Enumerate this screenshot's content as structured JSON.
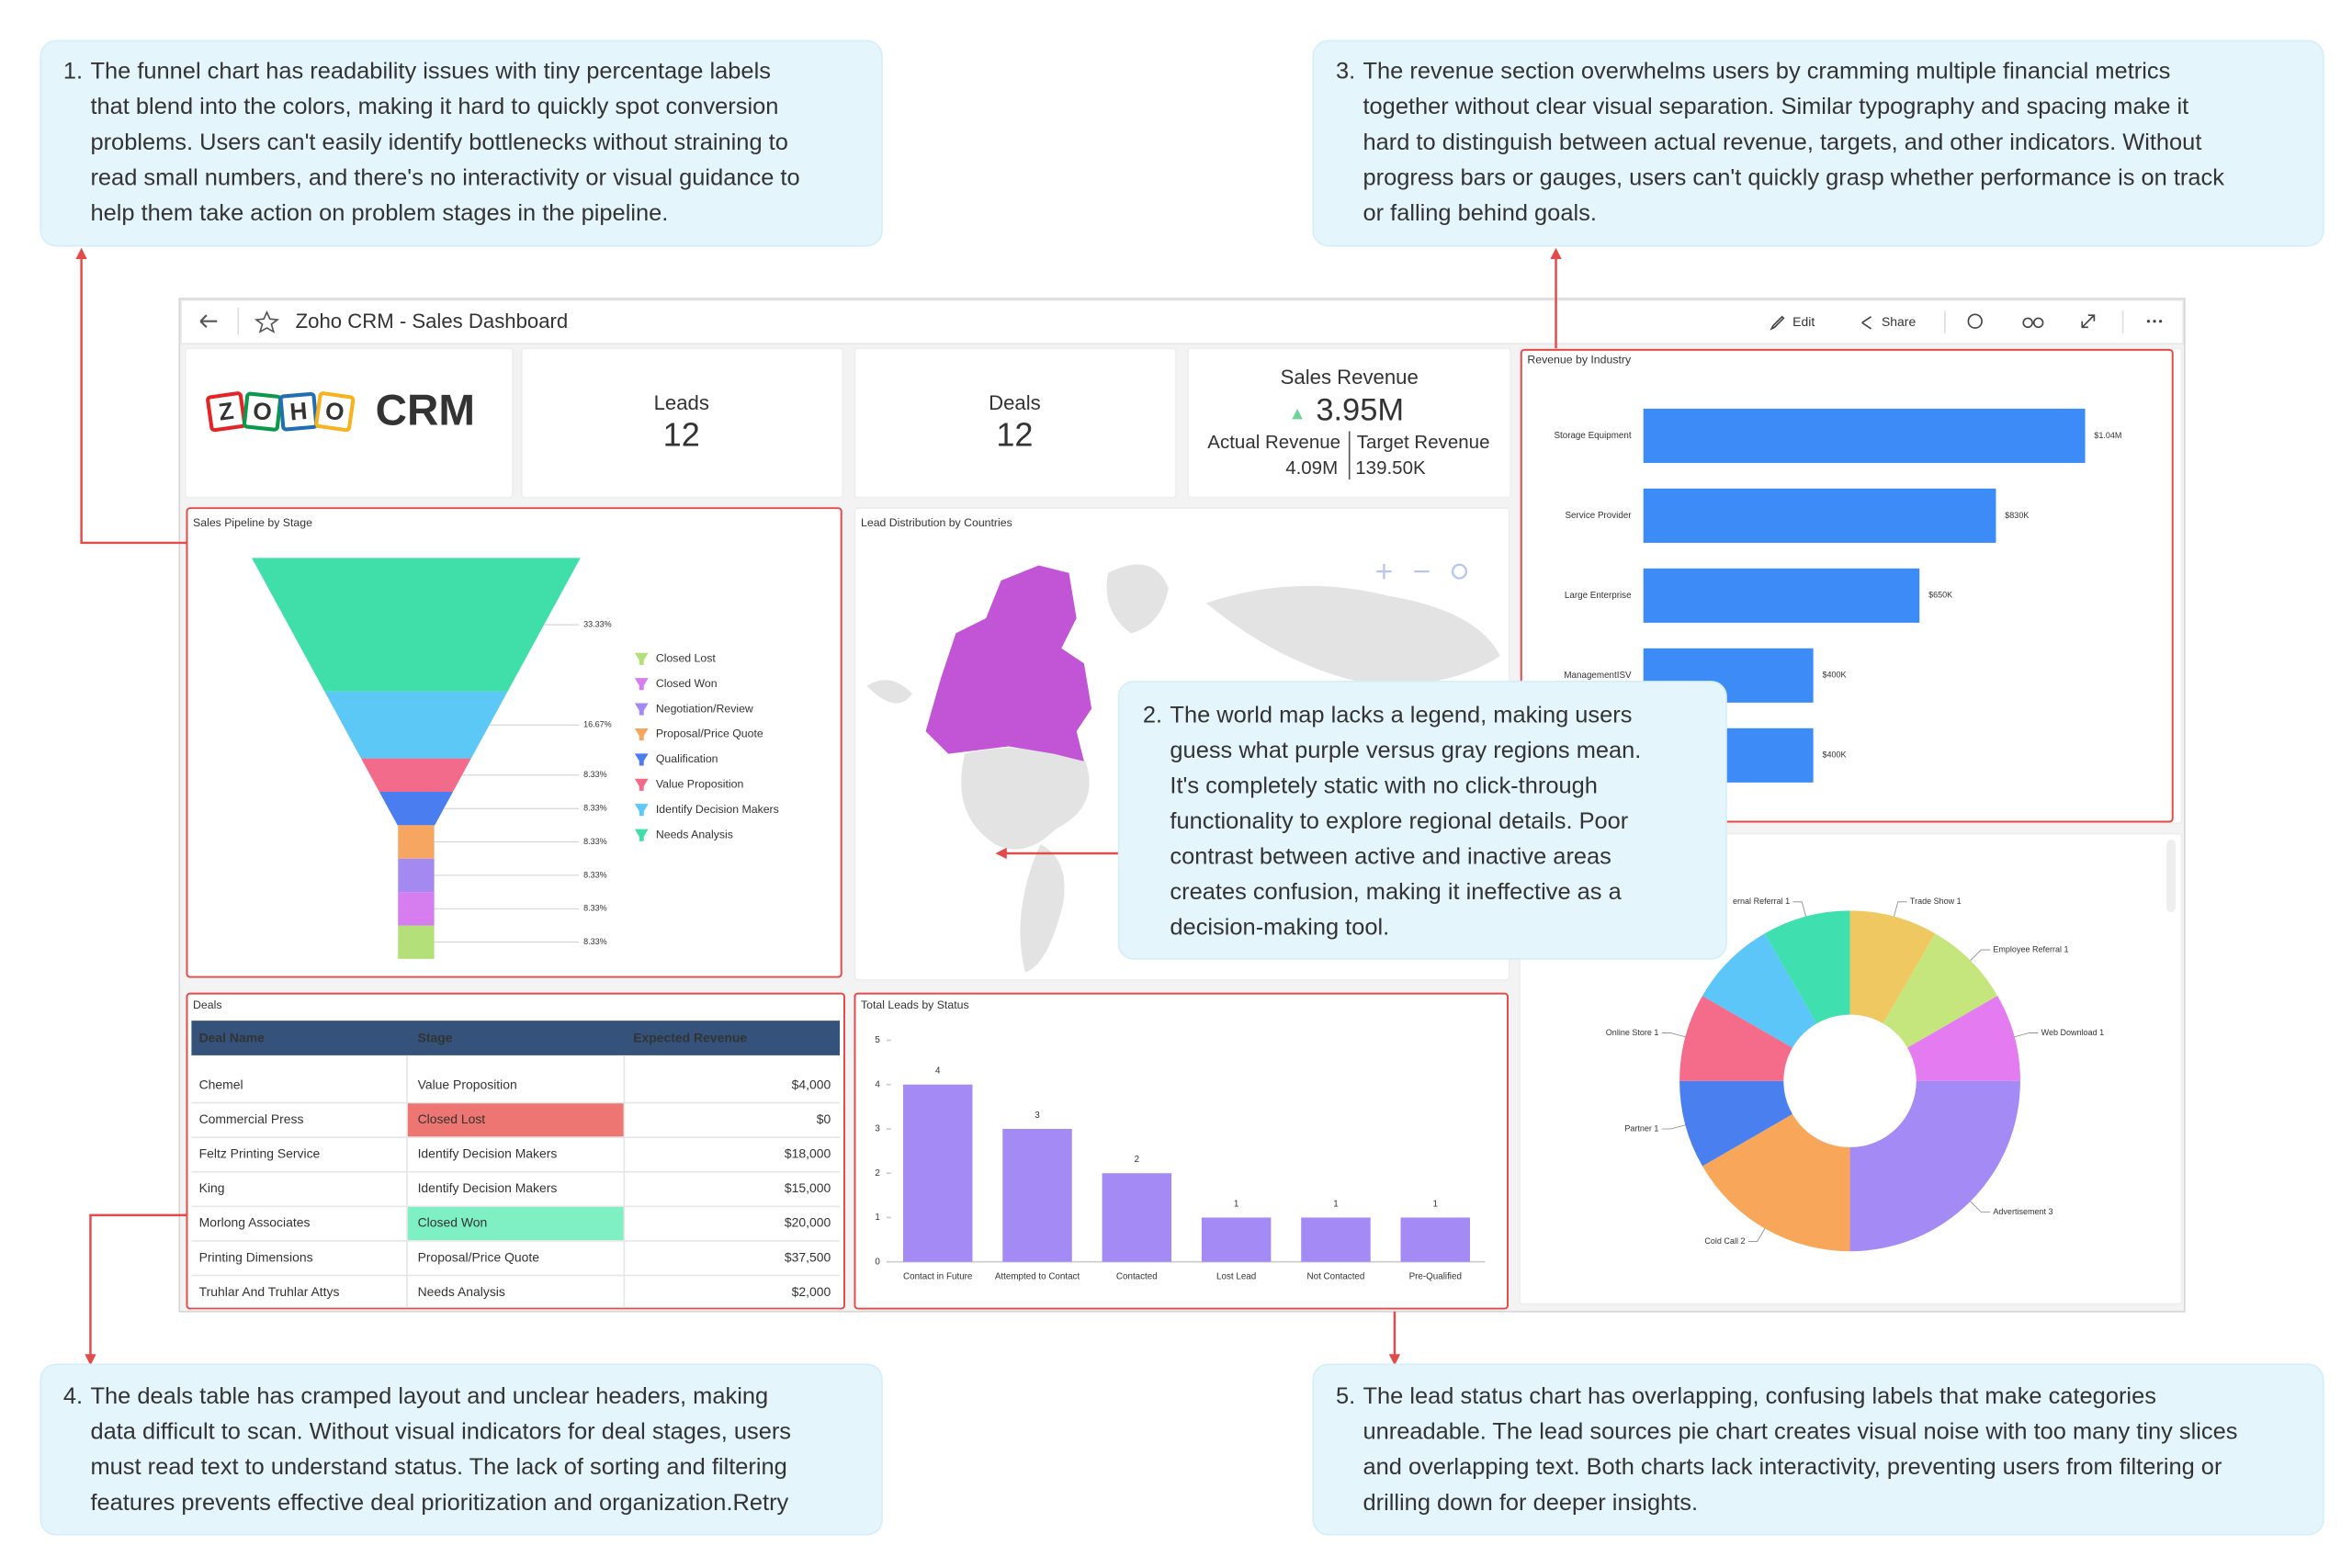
{
  "annotations": [
    {
      "number": "1.",
      "lines": [
        "The funnel chart has readability issues with tiny percentage labels",
        "that blend into the colors, making it hard to quickly spot conversion",
        "problems. Users can't easily identify bottlenecks without straining to",
        "read small numbers, and there's no interactivity or visual guidance to",
        "help them take action on problem stages in the pipeline."
      ]
    },
    {
      "number": "2.",
      "lines": [
        "The world map lacks a legend, making users",
        "guess what purple versus gray regions mean.",
        "It's completely static with no click-through",
        "functionality to explore regional details. Poor",
        "contrast between active and inactive areas",
        "creates confusion, making it ineffective as a",
        "decision-making tool."
      ]
    },
    {
      "number": "3.",
      "lines": [
        "The revenue section overwhelms users by cramming multiple financial metrics",
        "together without clear visual separation. Similar typography and spacing make it",
        "hard to distinguish between actual revenue, targets, and other indicators. Without",
        "progress bars or gauges, users can't quickly grasp whether performance is on track",
        "or falling behind goals."
      ]
    },
    {
      "number": "4.",
      "lines": [
        "The deals table has cramped layout and unclear headers, making",
        "data difficult to scan. Without visual indicators for deal stages, users",
        "must read text to understand status. The lack of sorting and filtering",
        "features prevents effective deal prioritization and organization.Retry"
      ]
    },
    {
      "number": "5.",
      "lines": [
        "The lead status chart has overlapping, confusing labels that make categories",
        "unreadable. The lead sources pie chart creates visual noise with too many tiny slices",
        "and overlapping text. Both charts lack interactivity, preventing users from filtering or",
        "drilling down for deeper insights."
      ]
    }
  ],
  "header": {
    "title": "Zoho CRM - Sales Dashboard",
    "edit": "Edit",
    "share": "Share"
  },
  "logo": {
    "brand": [
      "Z",
      "O",
      "H",
      "O"
    ],
    "product": "CRM"
  },
  "leads": {
    "label": "Leads",
    "value": 12
  },
  "deals": {
    "label": "Deals",
    "value": 12
  },
  "sales_revenue": {
    "title": "Sales Revenue",
    "value": "3.95M",
    "actual_label": "Actual Revenue",
    "actual": "4.09M",
    "target_label": "Target Revenue",
    "target": "139.50K"
  },
  "revenue_by_industry": {
    "type": "bar",
    "title": "Revenue by Industry",
    "categories": [
      "Storage Equipment",
      "Service Provider",
      "Large Enterprise",
      "ManagementISV",
      null
    ],
    "values": [
      1040000,
      830000,
      650000,
      400000,
      400000
    ],
    "value_labels": [
      "$1.04M",
      "$830K",
      "$650K",
      "$400K",
      "$400K"
    ],
    "color": "#3d8bf6"
  },
  "sales_pipeline": {
    "type": "funnel",
    "title": "Sales Pipeline by Stage",
    "categories": [
      "Needs Analysis",
      "Identify Decision Makers",
      "Value Proposition",
      "Qualification",
      "Proposal/Price Quote",
      "Negotiation/Review",
      "Closed Won",
      "Closed Lost"
    ],
    "values": [
      33.33,
      16.67,
      8.33,
      8.33,
      8.33,
      8.33,
      8.33,
      8.33
    ],
    "value_labels": [
      "33.33%",
      "16.67%",
      "8.33%",
      "8.33%",
      "8.33%",
      "8.33%",
      "8.33%",
      "8.33%"
    ],
    "colors": [
      "#40dfa9",
      "#5cc8f5",
      "#f26b8a",
      "#4a7ef0",
      "#f6a660",
      "#a48af0",
      "#d67df0",
      "#b4e07a"
    ]
  },
  "lead_map": {
    "title": "Lead Distribution by Countries"
  },
  "deals_table": {
    "title": "Deals",
    "headers": [
      "Deal Name",
      "Stage",
      "Expected Revenue"
    ],
    "rows": [
      [
        "Chemel",
        "Value Proposition",
        "$4,000"
      ],
      [
        "Commercial Press",
        "Closed Lost",
        "$0"
      ],
      [
        "Feltz Printing Service",
        "Identify Decision Makers",
        "$18,000"
      ],
      [
        "King",
        "Identify Decision Makers",
        "$15,000"
      ],
      [
        "Morlong Associates",
        "Closed Won",
        "$20,000"
      ],
      [
        "Printing Dimensions",
        "Proposal/Price Quote",
        "$37,500"
      ],
      [
        "Truhlar And Truhlar Attys",
        "Needs Analysis",
        "$2,000"
      ]
    ],
    "stage_colors": {
      "Closed Lost": "#ee7672",
      "Closed Won": "#7ff0c4"
    }
  },
  "total_leads": {
    "type": "bar",
    "title": "Total Leads by Status",
    "categories": [
      "Contact in Future",
      "Attempted to Contact",
      "Contacted",
      "Lost Lead",
      "Not Contacted",
      "Pre-Qualified"
    ],
    "values": [
      4,
      3,
      2,
      1,
      1,
      1
    ],
    "ylim": [
      0,
      5
    ],
    "yticks": [
      0,
      1,
      2,
      3,
      4,
      5
    ],
    "color": "#a48af5"
  },
  "lead_sources": {
    "type": "donut",
    "categories": [
      "Trade Show 1",
      "Employee Referral 1",
      "Web Download 1",
      "Advertisement 3",
      "Cold Call 2",
      "Partner 1",
      "Online Store 1",
      null,
      "ernal Referral 1"
    ],
    "values": [
      1,
      1,
      1,
      3,
      2,
      1,
      1,
      1,
      1
    ],
    "colors": [
      "#f0c862",
      "#c4e67c",
      "#e57bf0",
      "#a48af5",
      "#f8a65a",
      "#4a7ff0",
      "#f46c8a",
      "#5bc6f7",
      "#40dfb0"
    ]
  }
}
